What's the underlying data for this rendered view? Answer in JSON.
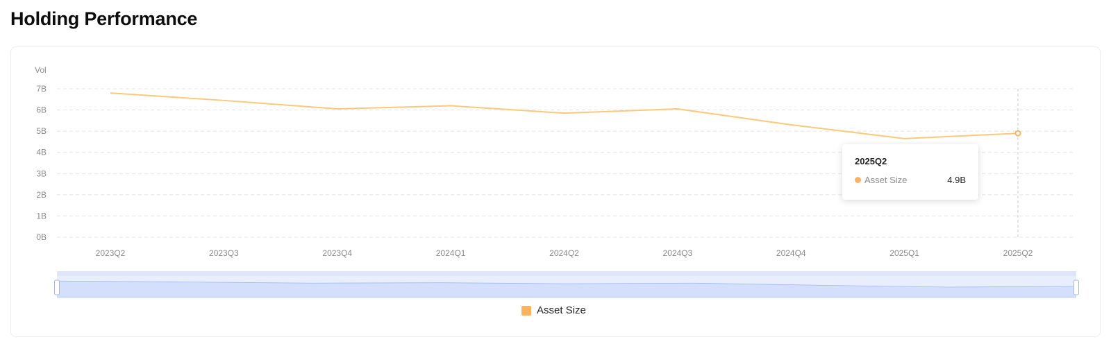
{
  "page": {
    "title": "Holding Performance"
  },
  "colors": {
    "line": "#fcc879",
    "marker": "#fbb35f",
    "zoom_fill": "#d4e0fb",
    "zoom_bg": "#e8eefc",
    "zoom_line": "#9fb8f2"
  },
  "chart_data": {
    "type": "line",
    "ylabel": "Vol",
    "y_unit": "B",
    "ylim": [
      0,
      7
    ],
    "y_ticks": [
      "0B",
      "1B",
      "2B",
      "3B",
      "4B",
      "5B",
      "6B",
      "7B"
    ],
    "categories": [
      "2023Q2",
      "2023Q3",
      "2023Q4",
      "2024Q1",
      "2024Q2",
      "2024Q3",
      "2024Q4",
      "2025Q1",
      "2025Q2"
    ],
    "series": [
      {
        "name": "Asset Size",
        "values": [
          6.8,
          6.45,
          6.05,
          6.2,
          5.85,
          6.05,
          5.3,
          4.65,
          4.9
        ]
      }
    ],
    "grid": true,
    "legend": "bottom-center",
    "data_zoom": {
      "start_percent": 0,
      "end_percent": 100
    },
    "highlighted_index": 8
  },
  "tooltip": {
    "title": "2025Q2",
    "series_name": "Asset Size",
    "value": "4.9B"
  },
  "legend": {
    "label": "Asset Size"
  }
}
